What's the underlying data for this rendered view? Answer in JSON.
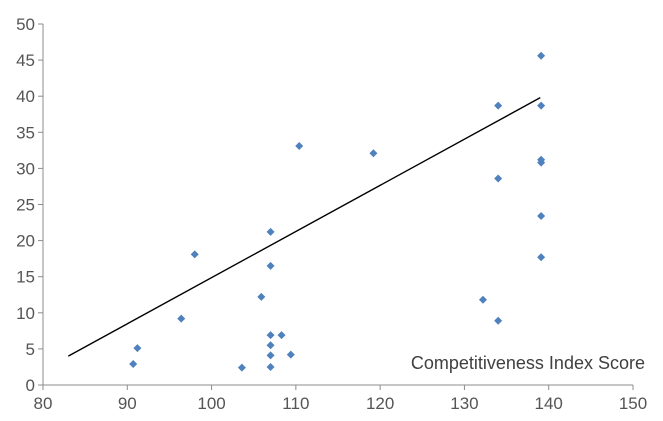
{
  "chart_data": {
    "type": "scatter",
    "title": "",
    "xlabel": "",
    "ylabel": "",
    "annotation": "Competitiveness Index Score",
    "xlim": [
      80,
      150
    ],
    "ylim": [
      0,
      50
    ],
    "xticks": [
      "80",
      "90",
      "100",
      "110",
      "120",
      "130",
      "140",
      "150"
    ],
    "yticks": [
      "0",
      "5",
      "10",
      "15",
      "20",
      "25",
      "30",
      "35",
      "40",
      "45",
      "50"
    ],
    "grid": false,
    "legend": "none",
    "marker_color": "#4f81bd",
    "trendline_color": "#000000",
    "points": [
      {
        "x": 90.7,
        "y": 2.9
      },
      {
        "x": 91.2,
        "y": 5.1
      },
      {
        "x": 96.4,
        "y": 9.2
      },
      {
        "x": 98.0,
        "y": 18.1
      },
      {
        "x": 103.6,
        "y": 2.4
      },
      {
        "x": 105.9,
        "y": 12.2
      },
      {
        "x": 107.0,
        "y": 21.2
      },
      {
        "x": 107.0,
        "y": 16.5
      },
      {
        "x": 107.0,
        "y": 6.9
      },
      {
        "x": 107.0,
        "y": 5.5
      },
      {
        "x": 107.0,
        "y": 4.1
      },
      {
        "x": 107.0,
        "y": 2.5
      },
      {
        "x": 108.3,
        "y": 6.9
      },
      {
        "x": 109.4,
        "y": 4.2
      },
      {
        "x": 110.4,
        "y": 33.1
      },
      {
        "x": 119.2,
        "y": 32.1
      },
      {
        "x": 132.2,
        "y": 11.8
      },
      {
        "x": 134.0,
        "y": 38.7
      },
      {
        "x": 134.0,
        "y": 28.6
      },
      {
        "x": 134.0,
        "y": 8.9
      },
      {
        "x": 139.1,
        "y": 45.6
      },
      {
        "x": 139.1,
        "y": 38.7
      },
      {
        "x": 139.1,
        "y": 31.2
      },
      {
        "x": 139.1,
        "y": 30.8
      },
      {
        "x": 139.1,
        "y": 23.4
      },
      {
        "x": 139.1,
        "y": 17.7
      }
    ],
    "trendline": {
      "x": [
        83,
        139
      ],
      "y": [
        4.0,
        39.8
      ]
    }
  }
}
